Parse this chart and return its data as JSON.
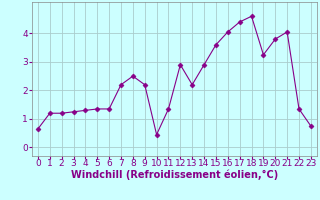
{
  "x": [
    0,
    1,
    2,
    3,
    4,
    5,
    6,
    7,
    8,
    9,
    10,
    11,
    12,
    13,
    14,
    15,
    16,
    17,
    18,
    19,
    20,
    21,
    22,
    23
  ],
  "y": [
    0.65,
    1.2,
    1.2,
    1.25,
    1.3,
    1.35,
    1.35,
    2.2,
    2.5,
    2.2,
    0.45,
    1.35,
    2.9,
    2.2,
    2.9,
    3.6,
    4.05,
    4.4,
    4.6,
    3.25,
    3.8,
    4.05,
    1.35,
    0.75
  ],
  "line_color": "#880088",
  "marker": "D",
  "marker_size": 2.5,
  "bg_color": "#ccffff",
  "grid_color": "#aacccc",
  "xlabel": "Windchill (Refroidissement éolien,°C)",
  "xlim": [
    -0.5,
    23.5
  ],
  "ylim": [
    -0.3,
    5.1
  ],
  "xticks": [
    0,
    1,
    2,
    3,
    4,
    5,
    6,
    7,
    8,
    9,
    10,
    11,
    12,
    13,
    14,
    15,
    16,
    17,
    18,
    19,
    20,
    21,
    22,
    23
  ],
  "yticks": [
    0,
    1,
    2,
    3,
    4
  ],
  "xlabel_fontsize": 7.0,
  "tick_fontsize": 6.5,
  "label_color": "#880088",
  "spine_color": "#888888"
}
